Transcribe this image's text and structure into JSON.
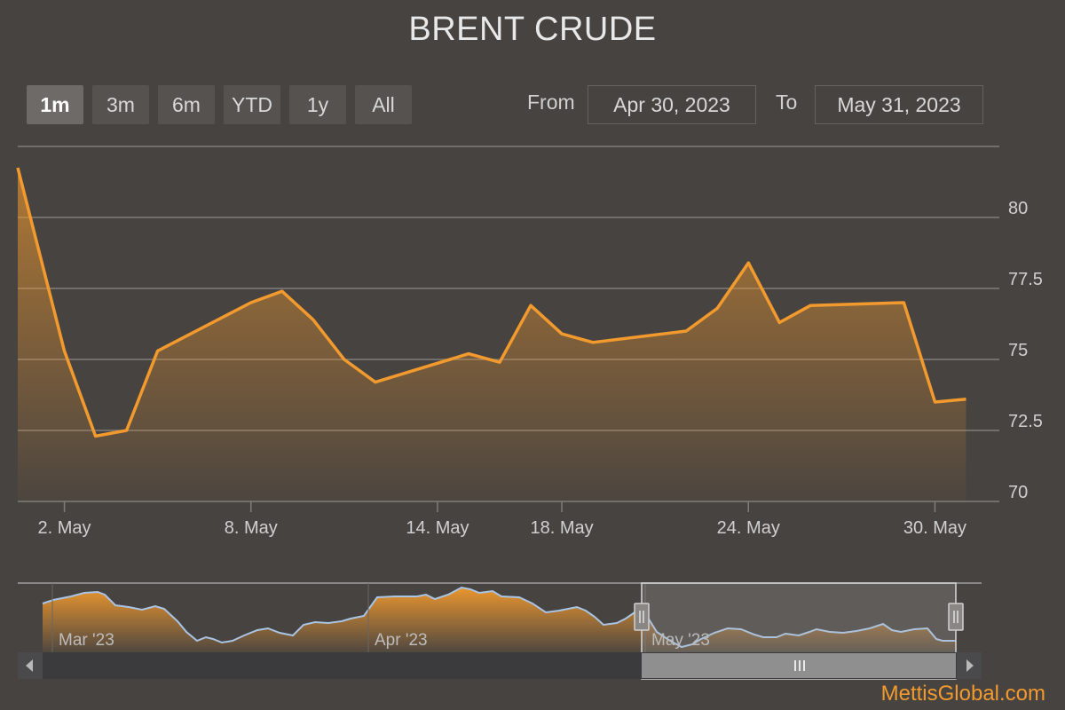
{
  "title": "BRENT CRUDE",
  "range_selector": {
    "buttons": [
      "1m",
      "3m",
      "6m",
      "YTD",
      "1y",
      "All"
    ],
    "active": "1m",
    "from_label": "From",
    "from_value": "Apr 30, 2023",
    "to_label": "To",
    "to_value": "May 31, 2023"
  },
  "credit": "MettisGlobal.com",
  "colors": {
    "background": "#474340",
    "line": "#f29a2e",
    "grid": "#807c78",
    "navigator_line": "#a9c4e4"
  },
  "chart_data": {
    "type": "area",
    "title": "BRENT CRUDE",
    "xlabel": "",
    "ylabel": "",
    "x_ticks": [
      "2. May",
      "8. May",
      "14. May",
      "18. May",
      "24. May",
      "30. May"
    ],
    "y_ticks": [
      "70",
      "72.5",
      "75",
      "77.5",
      "80"
    ],
    "ylim": [
      70,
      82.5
    ],
    "grid": true,
    "series": [
      {
        "x": [
          "2023-05-01",
          "2023-05-02",
          "2023-05-03",
          "2023-05-04",
          "2023-05-05",
          "2023-05-08",
          "2023-05-09",
          "2023-05-10",
          "2023-05-11",
          "2023-05-12",
          "2023-05-15",
          "2023-05-16",
          "2023-05-17",
          "2023-05-18",
          "2023-05-19",
          "2023-05-22",
          "2023-05-23",
          "2023-05-24",
          "2023-05-25",
          "2023-05-26",
          "2023-05-29",
          "2023-05-30",
          "2023-05-31"
        ],
        "values": [
          79.6,
          75.3,
          72.3,
          72.5,
          75.3,
          77.0,
          77.4,
          76.4,
          75.0,
          74.2,
          75.2,
          74.9,
          76.9,
          75.9,
          75.6,
          76.0,
          76.8,
          78.4,
          76.3,
          76.9,
          77.0,
          73.5,
          73.6
        ]
      }
    ],
    "navigator": {
      "x_ticks": [
        "Mar '23",
        "Apr '23",
        "May '23"
      ],
      "selected_range": [
        "2023-04-30",
        "2023-05-31"
      ]
    }
  }
}
